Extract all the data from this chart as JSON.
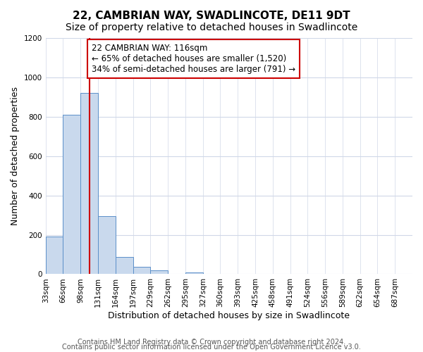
{
  "title": "22, CAMBRIAN WAY, SWADLINCOTE, DE11 9DT",
  "subtitle": "Size of property relative to detached houses in Swadlincote",
  "xlabel": "Distribution of detached houses by size in Swadlincote",
  "ylabel": "Number of detached properties",
  "bin_edges": [
    33,
    66,
    99,
    132,
    165,
    198,
    231,
    264,
    297,
    330,
    363,
    396,
    429,
    462,
    495,
    528,
    561,
    594,
    627,
    660,
    693
  ],
  "bin_labels": [
    "33sqm",
    "66sqm",
    "98sqm",
    "131sqm",
    "164sqm",
    "197sqm",
    "229sqm",
    "262sqm",
    "295sqm",
    "327sqm",
    "360sqm",
    "393sqm",
    "425sqm",
    "458sqm",
    "491sqm",
    "524sqm",
    "556sqm",
    "589sqm",
    "622sqm",
    "654sqm",
    "687sqm"
  ],
  "bar_heights": [
    193,
    810,
    921,
    296,
    88,
    36,
    18,
    0,
    10,
    0,
    0,
    0,
    0,
    0,
    0,
    0,
    0,
    0,
    0,
    0
  ],
  "bar_color": "#c9d9ed",
  "bar_edge_color": "#5b8fc9",
  "property_line_x": 116,
  "property_line_color": "#cc0000",
  "annotation_text": "22 CAMBRIAN WAY: 116sqm\n← 65% of detached houses are smaller (1,520)\n34% of semi-detached houses are larger (791) →",
  "annotation_box_color": "#ffffff",
  "annotation_box_edge": "#cc0000",
  "ylim": [
    0,
    1200
  ],
  "yticks": [
    0,
    200,
    400,
    600,
    800,
    1000,
    1200
  ],
  "footer_line1": "Contains HM Land Registry data © Crown copyright and database right 2024.",
  "footer_line2": "Contains public sector information licensed under the Open Government Licence v3.0.",
  "bg_color": "#ffffff",
  "grid_color": "#d0d8e8",
  "title_fontsize": 11,
  "subtitle_fontsize": 10,
  "axis_label_fontsize": 9,
  "tick_fontsize": 7.5,
  "footer_fontsize": 7
}
